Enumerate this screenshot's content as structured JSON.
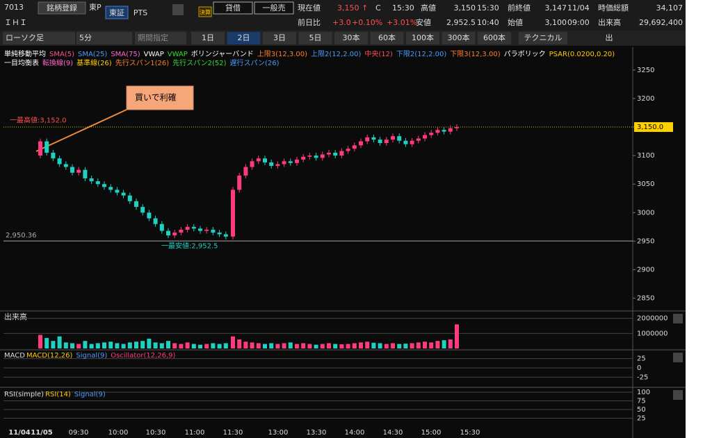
{
  "header": {
    "code": "7013",
    "register": "銘柄登録",
    "market": "東P",
    "exchanges": [
      "東証",
      "PTS"
    ],
    "earnings": "決算",
    "lending": "貸借",
    "general_sell": "一般売",
    "name": "ＩＨＩ",
    "quote": {
      "current_label": "現在値",
      "current": "3,150 ↑",
      "current_flag": "C",
      "current_time": "15:30",
      "high_label": "高値",
      "high": "3,150",
      "high_time": "15:30",
      "prev_label": "前終値",
      "prev": "3,147",
      "prev_date": "11/04",
      "mcap_label": "時価総額",
      "mcap": "34,107",
      "change_label": "前日比",
      "change": "+3.0",
      "change_pct": "+0.10%",
      "change_pct2": "+3.01%",
      "low_label": "安値",
      "low": "2,952.5",
      "low_time": "10:40",
      "open_label": "始値",
      "open": "3,100",
      "open_time": "09:00",
      "volume_label": "出来高",
      "volume": "29,692,400"
    }
  },
  "toolbar": {
    "chart_type": "ローソク足",
    "interval": "5分",
    "period": "期間指定",
    "ranges": [
      "1日",
      "2日",
      "3日",
      "5日",
      "30本",
      "60本",
      "100本",
      "300本",
      "600本"
    ],
    "active_range": 1,
    "technical": "テクニカル",
    "output": "出"
  },
  "legend": {
    "row1": [
      {
        "text": "単純移動平均",
        "color": "#ffffff"
      },
      {
        "text": "SMA(5)",
        "color": "#ff4f8b"
      },
      {
        "text": "SMA(25)",
        "color": "#4a9bff"
      },
      {
        "text": "SMA(75)",
        "color": "#ff66cc"
      },
      {
        "text": "VWAP",
        "color": "#ffffff"
      },
      {
        "text": "VWAP",
        "color": "#33dd33"
      },
      {
        "text": "ボリンジャーバンド",
        "color": "#ffffff"
      },
      {
        "text": "上限3(12,3.00)",
        "color": "#ff7f27"
      },
      {
        "text": "上限2(12,2.00)",
        "color": "#4a9bff"
      },
      {
        "text": "中央(12)",
        "color": "#ff4f4f"
      },
      {
        "text": "下限2(12,2.00)",
        "color": "#4a9bff"
      },
      {
        "text": "下限3(12,3.00)",
        "color": "#ff7f27"
      },
      {
        "text": "パラボリック",
        "color": "#ffffff"
      },
      {
        "text": "PSAR(0.0200,0.20)",
        "color": "#ffcc00"
      }
    ],
    "row2": [
      {
        "text": "一目均衡表",
        "color": "#ffffff"
      },
      {
        "text": "転換線(9)",
        "color": "#ff66cc"
      },
      {
        "text": "基準線(26)",
        "color": "#ffcc00"
      },
      {
        "text": "先行スパン1(26)",
        "color": "#ff7f27"
      },
      {
        "text": "先行スパン2(52)",
        "color": "#33dd33"
      },
      {
        "text": "遅行スパン(26)",
        "color": "#4a9bff"
      }
    ]
  },
  "chart": {
    "ylim": [
      2830,
      3290
    ],
    "yticks": [
      2850,
      2900,
      2950,
      3000,
      3050,
      3100,
      3150,
      3200,
      3250
    ],
    "current": 3150,
    "current_label": "3,150.0",
    "high": 3152,
    "high_label": "一最高値:3,152.0",
    "low": 2952.5,
    "low_label": "一最安値:2,952.5",
    "ref_line": 2950.36,
    "ref_label": "2,950.36",
    "annotation": "買いで利確",
    "up_color": "#ff3b7f",
    "down_color": "#1fd1c1",
    "open_first": 3100,
    "closes": [
      3125,
      3105,
      3095,
      3085,
      3080,
      3070,
      3075,
      3060,
      3055,
      3050,
      3045,
      3040,
      3035,
      3030,
      3020,
      3010,
      3000,
      2990,
      2980,
      2968,
      2960,
      2965,
      2970,
      2975,
      2972,
      2968,
      2970,
      2965,
      2962,
      2958,
      3040,
      3065,
      3080,
      3090,
      3095,
      3088,
      3082,
      3085,
      3090,
      3087,
      3093,
      3098,
      3100,
      3096,
      3102,
      3105,
      3100,
      3108,
      3112,
      3118,
      3125,
      3132,
      3128,
      3122,
      3128,
      3134,
      3126,
      3120,
      3126,
      3130,
      3136,
      3140,
      3145,
      3142,
      3148,
      3150
    ],
    "times": [
      "11/04",
      "11/05",
      "09:30",
      "10:00",
      "10:30",
      "11:00",
      "11:30",
      "13:00",
      "13:30",
      "14:00",
      "14:30",
      "15:00",
      "15:30"
    ]
  },
  "volume": {
    "title": "出来高",
    "ylim": [
      0,
      2400000
    ],
    "yticks": [
      1000000,
      2000000
    ],
    "color": "#ff3b7f",
    "color2": "#1fd1c1",
    "values": [
      900000,
      700000,
      500000,
      800000,
      400000,
      350000,
      300000,
      500000,
      300000,
      350000,
      400000,
      450000,
      350000,
      300000,
      400000,
      450000,
      500000,
      650000,
      400000,
      350000,
      500000,
      350000,
      300000,
      400000,
      300000,
      250000,
      300000,
      350000,
      300000,
      350000,
      800000,
      600000,
      450000,
      400000,
      350000,
      300000,
      350000,
      300000,
      350000,
      400000,
      300000,
      350000,
      300000,
      250000,
      300000,
      350000,
      300000,
      280000,
      300000,
      350000,
      400000,
      450000,
      380000,
      350000,
      300000,
      350000,
      300000,
      320000,
      350000,
      400000,
      450000,
      400000,
      500000,
      550000,
      600000,
      1600000
    ]
  },
  "macd": {
    "title": "MACD",
    "items": [
      {
        "text": "MACD(12,26)",
        "color": "#ffcc00"
      },
      {
        "text": "Signal(9)",
        "color": "#4a9bff"
      },
      {
        "text": "Oscillator(12,26,9)",
        "color": "#ff3b7f"
      }
    ],
    "ylim": [
      -45,
      45
    ],
    "yticks": [
      -25,
      0,
      25
    ]
  },
  "rsi": {
    "title": "RSI(simple)",
    "items": [
      {
        "text": "RSI(14)",
        "color": "#ffcc00"
      },
      {
        "text": "Signal(9)",
        "color": "#4a9bff"
      }
    ],
    "ylim": [
      0,
      110
    ],
    "yticks": [
      25,
      50,
      75,
      100
    ]
  }
}
